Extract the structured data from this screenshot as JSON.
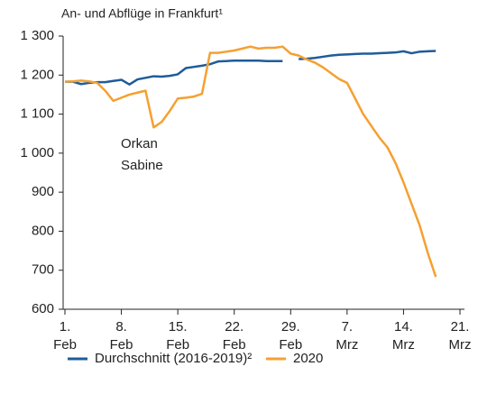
{
  "chart_data": {
    "type": "line",
    "title": "An- und Abflüge in Frankfurt¹",
    "annotations": [
      "Orkan",
      "Sabine"
    ],
    "x": [
      0,
      1,
      2,
      3,
      4,
      5,
      6,
      7,
      8,
      9,
      10,
      11,
      12,
      13,
      14,
      15,
      16,
      17,
      18,
      19,
      20,
      21,
      22,
      23,
      24,
      25,
      26,
      27,
      28,
      29,
      30,
      31,
      32,
      33,
      34,
      35,
      36,
      37,
      38,
      39,
      40,
      41,
      42,
      43,
      44,
      45,
      46
    ],
    "series": [
      {
        "name": "Durchschnitt (2016-2019)²",
        "color": "#1f5c99",
        "values": [
          1183,
          1183,
          1177,
          1180,
          1182,
          1182,
          1185,
          1188,
          1176,
          1189,
          1193,
          1197,
          1196,
          1198,
          1202,
          1218,
          1221,
          1224,
          1228,
          1235,
          1236,
          1237,
          1237,
          1237,
          1237,
          1236,
          1236,
          1236,
          null,
          1241,
          1242,
          1244,
          1247,
          1250,
          1252,
          1253,
          1254,
          1255,
          1255,
          1256,
          1257,
          1258,
          1261,
          1256,
          1260,
          1261,
          1262
        ]
      },
      {
        "name": "2020",
        "color": "#f5a031",
        "values": [
          1183,
          1184,
          1186,
          1184,
          1180,
          1160,
          1134,
          1142,
          1150,
          1155,
          1160,
          1066,
          1080,
          1108,
          1140,
          1142,
          1145,
          1152,
          1257,
          1257,
          1260,
          1263,
          1268,
          1273,
          1268,
          1270,
          1270,
          1273,
          1255,
          1250,
          1240,
          1232,
          1220,
          1205,
          1190,
          1180,
          1140,
          1100,
          1070,
          1040,
          1015,
          975,
          925,
          870,
          815,
          745,
          683
        ]
      }
    ],
    "xlim": [
      0,
      49
    ],
    "xticks": [
      {
        "value": 0,
        "label": [
          "1.",
          "Feb"
        ]
      },
      {
        "value": 7,
        "label": [
          "8.",
          "Feb"
        ]
      },
      {
        "value": 14,
        "label": [
          "15.",
          "Feb"
        ]
      },
      {
        "value": 21,
        "label": [
          "22.",
          "Feb"
        ]
      },
      {
        "value": 28,
        "label": [
          "29.",
          "Feb"
        ]
      },
      {
        "value": 35,
        "label": [
          "7.",
          "Mrz"
        ]
      },
      {
        "value": 42,
        "label": [
          "14.",
          "Mrz"
        ]
      },
      {
        "value": 49,
        "label": [
          "21.",
          "Mrz"
        ]
      }
    ],
    "ylim": [
      600,
      1300
    ],
    "yticks": [
      600,
      700,
      800,
      900,
      {
        "value": 1000,
        "label": "1 000"
      },
      {
        "value": 1100,
        "label": "1 100"
      },
      {
        "value": 1200,
        "label": "1 200"
      },
      {
        "value": 1300,
        "label": "1 300"
      }
    ],
    "grid": false
  }
}
